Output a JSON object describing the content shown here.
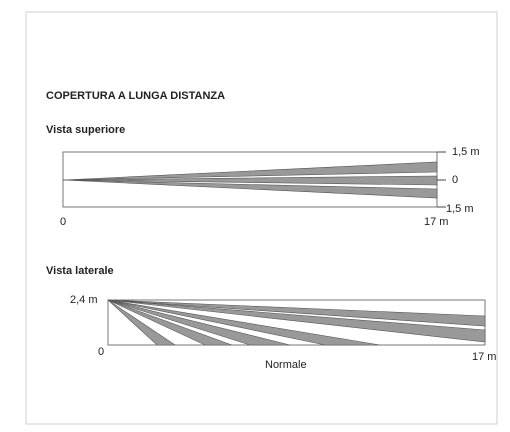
{
  "title": "COPERTURA A LUNGA DISTANZA",
  "top_view": {
    "title": "Vista superiore",
    "right_top": "1,5 m",
    "right_mid": "0",
    "right_bottom": "1,5 m",
    "x_start": "0",
    "x_end": "17 m"
  },
  "side_view": {
    "title": "Vista laterale",
    "height": "2,4 m",
    "x_start": "0",
    "x_label": "Normale",
    "x_end": "17 m"
  }
}
